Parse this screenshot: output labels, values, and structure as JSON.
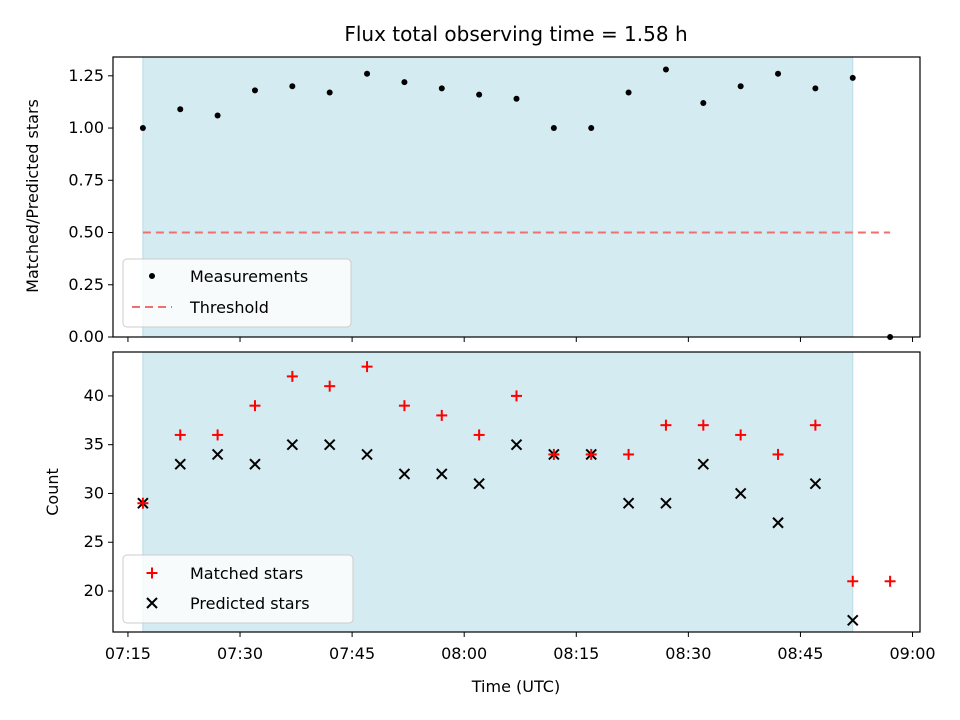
{
  "chart_data": [
    {
      "type": "scatter",
      "title": "Flux total observing time = 1.58 h",
      "xlabel": "",
      "ylabel": "Matched/Predicted stars",
      "ylim": [
        0,
        1.34
      ],
      "yticks": [
        "0.00",
        "0.25",
        "0.50",
        "0.75",
        "1.00",
        "1.25"
      ],
      "ytick_values": [
        0,
        0.25,
        0.5,
        0.75,
        1.0,
        1.25
      ],
      "shaded_region": [
        "07:17",
        "08:52"
      ],
      "series": [
        {
          "name": "Measurements",
          "marker": "dot",
          "color": "#000000",
          "x": [
            "07:17",
            "07:22",
            "07:27",
            "07:32",
            "07:37",
            "07:42",
            "07:47",
            "07:52",
            "07:57",
            "08:02",
            "08:07",
            "08:12",
            "08:17",
            "08:22",
            "08:27",
            "08:32",
            "08:37",
            "08:42",
            "08:47",
            "08:52",
            "08:57"
          ],
          "y": [
            1.0,
            1.09,
            1.06,
            1.18,
            1.2,
            1.17,
            1.26,
            1.22,
            1.19,
            1.16,
            1.14,
            1.0,
            1.0,
            1.17,
            1.28,
            1.12,
            1.2,
            1.26,
            1.19,
            1.24,
            0.0
          ]
        },
        {
          "name": "Threshold",
          "marker": "dashed-line",
          "color": "#f07070",
          "x": [
            "07:17",
            "08:57"
          ],
          "y": [
            0.5,
            0.5
          ]
        }
      ],
      "legend": "lower-left"
    },
    {
      "type": "scatter",
      "xlabel": "Time (UTC)",
      "ylabel": "Count",
      "ylim": [
        15.8,
        44.5
      ],
      "yticks": [
        "20",
        "25",
        "30",
        "35",
        "40"
      ],
      "ytick_values": [
        20,
        25,
        30,
        35,
        40
      ],
      "xlim": [
        "07:13",
        "09:01"
      ],
      "xticks": [
        "07:15",
        "07:30",
        "07:45",
        "08:00",
        "08:15",
        "08:30",
        "08:45",
        "09:00"
      ],
      "shaded_region": [
        "07:17",
        "08:52"
      ],
      "series": [
        {
          "name": "Matched stars",
          "marker": "plus",
          "color": "#ff0000",
          "x": [
            "07:17",
            "07:22",
            "07:27",
            "07:32",
            "07:37",
            "07:42",
            "07:47",
            "07:52",
            "07:57",
            "08:02",
            "08:07",
            "08:12",
            "08:17",
            "08:22",
            "08:27",
            "08:32",
            "08:37",
            "08:42",
            "08:47",
            "08:52",
            "08:57"
          ],
          "y": [
            29,
            36,
            36,
            39,
            42,
            41,
            43,
            39,
            38,
            36,
            40,
            34,
            34,
            34,
            37,
            37,
            36,
            34,
            37,
            21,
            21
          ]
        },
        {
          "name": "Predicted stars",
          "marker": "x",
          "color": "#000000",
          "x": [
            "07:17",
            "07:22",
            "07:27",
            "07:32",
            "07:37",
            "07:42",
            "07:47",
            "07:52",
            "07:57",
            "08:02",
            "08:07",
            "08:12",
            "08:17",
            "08:22",
            "08:27",
            "08:32",
            "08:37",
            "08:42",
            "08:47",
            "08:52"
          ],
          "y": [
            29,
            33,
            34,
            33,
            35,
            35,
            34,
            32,
            32,
            31,
            35,
            34,
            34,
            29,
            29,
            33,
            30,
            27,
            31,
            17
          ]
        }
      ],
      "legend": "lower-left"
    }
  ],
  "colors": {
    "shade": "#d4ebf1",
    "shade_edge": "#b8dbe6",
    "threshold": "#f07070",
    "matched": "#ff0000",
    "predicted": "#000000"
  }
}
